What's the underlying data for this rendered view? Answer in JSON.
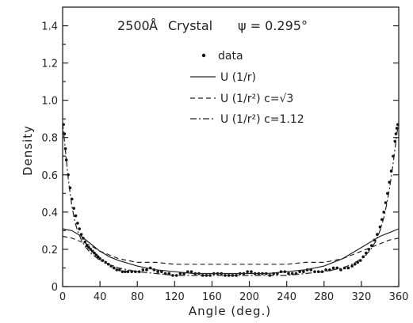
{
  "chart_data": {
    "type": "line",
    "annotation": {
      "thickness": "2500",
      "unit": "Å",
      "material": "Crystal",
      "psi_label": "ψ = 0.295°"
    },
    "xlabel": "Angle (deg.)",
    "ylabel": "Density",
    "xlim": [
      0,
      360
    ],
    "ylim": [
      0,
      1.5
    ],
    "xticks": [
      "0",
      "40",
      "80",
      "120",
      "160",
      "200",
      "240",
      "280",
      "320",
      "360"
    ],
    "yticks": [
      "0",
      "0.2",
      "0.4",
      "0.6",
      "0.8",
      "1.0",
      "1.2",
      "1.4"
    ],
    "grid": false,
    "legend_position": "top-right",
    "series": [
      {
        "name": "data",
        "style": "dots",
        "x": [
          1,
          2,
          3,
          4,
          6,
          8,
          10,
          12,
          14,
          16,
          18,
          20,
          22,
          24,
          26,
          28,
          30,
          32,
          34,
          36,
          38,
          40,
          43,
          46,
          49,
          52,
          55,
          58,
          61,
          64,
          67,
          70,
          74,
          78,
          82,
          86,
          90,
          94,
          98,
          102,
          106,
          110,
          114,
          118,
          122,
          126,
          130,
          134,
          138,
          142,
          146,
          150,
          154,
          158,
          162,
          166,
          170,
          174,
          178,
          182,
          186,
          190,
          194,
          198,
          202,
          206,
          210,
          214,
          218,
          222,
          226,
          230,
          234,
          238,
          242,
          246,
          250,
          254,
          258,
          262,
          266,
          270,
          274,
          278,
          282,
          286,
          290,
          294,
          298,
          302,
          306,
          310,
          313,
          316,
          319,
          322,
          325,
          328,
          331,
          334,
          337,
          340,
          342,
          344,
          346,
          348,
          350,
          352,
          354,
          356,
          357,
          358,
          359
        ],
        "values": [
          0.87,
          0.82,
          0.74,
          0.68,
          0.6,
          0.53,
          0.47,
          0.42,
          0.38,
          0.34,
          0.31,
          0.28,
          0.26,
          0.24,
          0.22,
          0.21,
          0.2,
          0.19,
          0.18,
          0.17,
          0.16,
          0.15,
          0.14,
          0.13,
          0.12,
          0.11,
          0.1,
          0.09,
          0.09,
          0.08,
          0.08,
          0.08,
          0.08,
          0.08,
          0.08,
          0.09,
          0.09,
          0.1,
          0.09,
          0.08,
          0.08,
          0.07,
          0.07,
          0.06,
          0.06,
          0.07,
          0.07,
          0.08,
          0.08,
          0.07,
          0.07,
          0.06,
          0.06,
          0.06,
          0.07,
          0.07,
          0.07,
          0.06,
          0.06,
          0.06,
          0.06,
          0.07,
          0.07,
          0.08,
          0.08,
          0.07,
          0.07,
          0.07,
          0.07,
          0.06,
          0.07,
          0.07,
          0.08,
          0.08,
          0.07,
          0.07,
          0.07,
          0.08,
          0.08,
          0.09,
          0.09,
          0.08,
          0.08,
          0.08,
          0.09,
          0.09,
          0.1,
          0.1,
          0.09,
          0.1,
          0.1,
          0.11,
          0.12,
          0.13,
          0.14,
          0.16,
          0.18,
          0.2,
          0.22,
          0.25,
          0.28,
          0.32,
          0.36,
          0.4,
          0.45,
          0.5,
          0.56,
          0.62,
          0.7,
          0.78,
          0.82,
          0.85,
          0.87
        ]
      },
      {
        "name": "U (1/r)",
        "style": "solid",
        "x": [
          0,
          10,
          20,
          30,
          40,
          50,
          60,
          80,
          100,
          120,
          140,
          160,
          180,
          200,
          220,
          240,
          260,
          280,
          300,
          310,
          320,
          330,
          340,
          350,
          360
        ],
        "values": [
          0.31,
          0.3,
          0.27,
          0.23,
          0.19,
          0.16,
          0.14,
          0.11,
          0.09,
          0.08,
          0.07,
          0.07,
          0.07,
          0.07,
          0.07,
          0.08,
          0.09,
          0.11,
          0.15,
          0.18,
          0.21,
          0.24,
          0.27,
          0.29,
          0.31
        ]
      },
      {
        "name": "U (1/r²) c=√3",
        "style": "dashed",
        "x": [
          0,
          10,
          20,
          30,
          40,
          50,
          60,
          70,
          80,
          100,
          120,
          140,
          160,
          180,
          200,
          220,
          240,
          260,
          280,
          290,
          300,
          310,
          320,
          330,
          340,
          350,
          360
        ],
        "values": [
          0.27,
          0.26,
          0.24,
          0.22,
          0.19,
          0.17,
          0.15,
          0.14,
          0.13,
          0.13,
          0.12,
          0.12,
          0.12,
          0.12,
          0.12,
          0.12,
          0.12,
          0.13,
          0.13,
          0.14,
          0.15,
          0.17,
          0.19,
          0.21,
          0.23,
          0.25,
          0.26
        ]
      },
      {
        "name": "U (1/r²) c=1.12",
        "style": "dashdot",
        "x": [
          0,
          2,
          4,
          6,
          8,
          10,
          13,
          16,
          20,
          25,
          30,
          35,
          40,
          50,
          60,
          80,
          100,
          120,
          140,
          160,
          180,
          200,
          220,
          240,
          260,
          280,
          300,
          310,
          320,
          325,
          330,
          335,
          340,
          344,
          347,
          350,
          352,
          354,
          356,
          358,
          360
        ],
        "values": [
          0.88,
          0.78,
          0.68,
          0.58,
          0.5,
          0.43,
          0.35,
          0.3,
          0.25,
          0.21,
          0.18,
          0.16,
          0.14,
          0.12,
          0.1,
          0.08,
          0.07,
          0.06,
          0.06,
          0.06,
          0.06,
          0.06,
          0.06,
          0.06,
          0.07,
          0.08,
          0.1,
          0.12,
          0.15,
          0.17,
          0.2,
          0.24,
          0.3,
          0.37,
          0.44,
          0.52,
          0.59,
          0.66,
          0.74,
          0.82,
          0.88
        ]
      }
    ]
  }
}
